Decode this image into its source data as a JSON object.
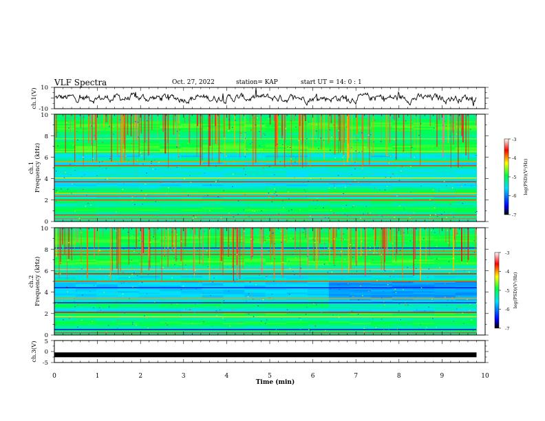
{
  "header": {
    "title": "VLF Spectra",
    "date": "Oct. 27, 2022",
    "station": "station= KAP",
    "start_ut": "start  UT =   14: 0  : 1"
  },
  "colors": {
    "trace": "#000000",
    "colormap": [
      "#000000",
      "#0000ff",
      "#00e0ff",
      "#00ff40",
      "#ffff00",
      "#ff0000",
      "#ffffff"
    ]
  },
  "chart_data": [
    {
      "id": "ch1",
      "type": "line",
      "ylabel": "ch.1(V)",
      "ylim": [
        -10,
        10
      ],
      "y_ticklabels": [
        "10",
        "-10"
      ],
      "xlim": [
        0,
        10
      ],
      "data_extent": [
        0,
        9.8
      ],
      "description_level": 3
    },
    {
      "id": "ch1_spec",
      "type": "heatmap",
      "ylabel_lines": [
        "ch.1",
        "Frequency  (kHz)"
      ],
      "ylim": [
        0,
        10
      ],
      "y_ticklabels": [
        "0",
        "2",
        "4",
        "6",
        "8",
        "10"
      ],
      "xlim": [
        0,
        10
      ],
      "data_extent": [
        0,
        9.8
      ],
      "colorbar": {
        "range": [
          -7,
          -3
        ],
        "ticklabels": [
          "-3",
          "-4",
          "-5",
          "-6",
          "-7"
        ],
        "label": "log(PSD)(V²/Hz)"
      }
    },
    {
      "id": "ch2_spec",
      "type": "heatmap",
      "ylabel_lines": [
        "ch.2",
        "Frequency  (kHz)"
      ],
      "ylim": [
        0,
        10
      ],
      "y_ticklabels": [
        "0",
        "2",
        "4",
        "6",
        "8",
        "10"
      ],
      "xlim": [
        0,
        10
      ],
      "data_extent": [
        0,
        9.8
      ],
      "colorbar": {
        "range": [
          -7,
          -3
        ],
        "ticklabels": [
          "-3",
          "-4",
          "-5",
          "-6",
          "-7"
        ],
        "label": "log(PSD)(V²/Hz)"
      }
    },
    {
      "id": "ch3",
      "type": "line",
      "ylabel": "ch.3(V)",
      "ylim": [
        -5,
        5
      ],
      "y_ticklabels": [
        "5",
        "0",
        "-5"
      ],
      "xlim": [
        0,
        10
      ],
      "data_extent": [
        0,
        9.8
      ],
      "level": -1.5,
      "x_ticklabels": [
        "0",
        "1",
        "2",
        "3",
        "4",
        "5",
        "6",
        "7",
        "8",
        "9",
        "10"
      ],
      "xlabel": "Time  (min)"
    }
  ]
}
